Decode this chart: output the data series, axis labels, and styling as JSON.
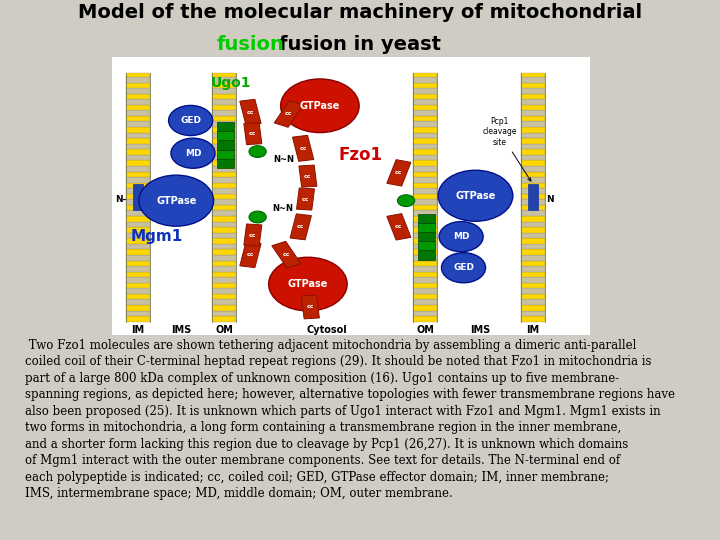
{
  "title_line1": "Model of the molecular machinery of mitochondrial",
  "title_line2_green": "fusion",
  "title_line2_rest": " in yeast",
  "title_fontsize": 14,
  "title_color": "black",
  "fusion_color": "#00cc00",
  "bg_color": "#d0ccc4",
  "description": " Two Fzo1 molecules are shown tethering adjacent mitochondria by assembling a dimeric anti-parallel\ncoiled coil of their C-terminal heptad repeat regions (29). It should be noted that Fzo1 in mitochondria is\npart of a large 800 kDa complex of unknown composition (16). Ugo1 contains up to five membrane-\nspanning regions, as depicted here; however, alternative topologies with fewer transmembrane regions have\nalso been proposed (25). It is unknown which parts of Ugo1 interact with Fzo1 and Mgm1. Mgm1 exists in\ntwo forms in mitochondria, a long form containing a transmembrane region in the inner membrane,\nand a shorter form lacking this region due to cleavage by Pcp1 (26,27). It is unknown which domains\nof Mgm1 interact with the outer membrane components. See text for details. The N-terminal end of\neach polypeptide is indicated; cc, coiled coil; GED, GTPase effector domain; IM, inner membrane;\nIMS, intermembrane space; MD, middle domain; OM, outer membrane.",
  "desc_fontsize": 8.5,
  "blue_circle": "#2244BB",
  "red_circle": "#CC1100",
  "green_label": "#00AA00",
  "blue_label": "#1133BB",
  "red_label": "#CC0000"
}
